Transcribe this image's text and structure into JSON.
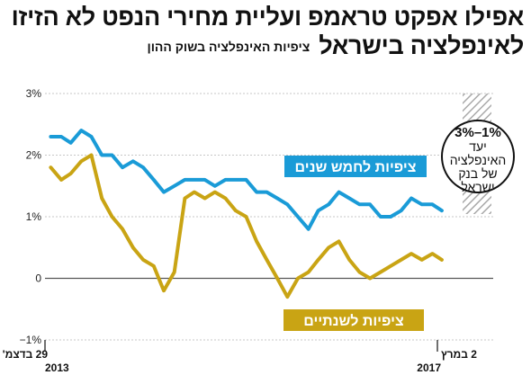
{
  "header": {
    "title_line1": "אפילו אפקט טראמפ ועליית מחירי הנפט לא הזיזו",
    "title_line2": "לאינפלציה בישראל",
    "subtitle": "ציפיות האינפלציה בשוק ההון"
  },
  "chart_data": {
    "type": "line",
    "title": "אפילו אפקט טראמפ ועליית מחירי הנפט לא הזיזו לאינפלציה בישראל",
    "subtitle": "ציפיות האינפלציה בשוק ההון",
    "ylim": [
      -1,
      3
    ],
    "yticks": [
      "3%",
      "2%",
      "1%",
      "0",
      "−1%"
    ],
    "yticks_values": [
      3,
      2,
      1,
      0,
      -1
    ],
    "grid": true,
    "x_range": [
      "2013-12-29",
      "2017-03-02"
    ],
    "x_start_label": {
      "day_month": "29 בדצמ'",
      "year": "2013"
    },
    "x_end_label": {
      "day_month": "2 במרץ",
      "year": "2017"
    },
    "series": [
      {
        "name": "ציפיות לחמש שנים",
        "color": "#1a9bd7",
        "x": [
          "2014-01",
          "2014-02",
          "2014-03",
          "2014-04",
          "2014-05",
          "2014-06",
          "2014-07",
          "2014-08",
          "2014-09",
          "2014-10",
          "2014-11",
          "2014-12",
          "2015-01",
          "2015-02",
          "2015-03",
          "2015-04",
          "2015-05",
          "2015-06",
          "2015-07",
          "2015-08",
          "2015-09",
          "2015-10",
          "2015-11",
          "2015-12",
          "2016-01",
          "2016-02",
          "2016-03",
          "2016-04",
          "2016-05",
          "2016-06",
          "2016-07",
          "2016-08",
          "2016-09",
          "2016-10",
          "2016-11",
          "2016-12",
          "2017-01",
          "2017-02",
          "2017-03"
        ],
        "values": [
          2.3,
          2.3,
          2.2,
          2.4,
          2.3,
          2.0,
          2.0,
          1.8,
          1.9,
          1.8,
          1.6,
          1.4,
          1.5,
          1.6,
          1.6,
          1.6,
          1.5,
          1.6,
          1.6,
          1.6,
          1.4,
          1.4,
          1.3,
          1.2,
          1.0,
          0.8,
          1.1,
          1.2,
          1.4,
          1.3,
          1.2,
          1.2,
          1.0,
          1.0,
          1.1,
          1.3,
          1.2,
          1.2,
          1.1
        ]
      },
      {
        "name": "ציפיות לשנתיים",
        "color": "#c9a414",
        "x": [
          "2014-01",
          "2014-02",
          "2014-03",
          "2014-04",
          "2014-05",
          "2014-06",
          "2014-07",
          "2014-08",
          "2014-09",
          "2014-10",
          "2014-11",
          "2014-12",
          "2015-01",
          "2015-02",
          "2015-03",
          "2015-04",
          "2015-05",
          "2015-06",
          "2015-07",
          "2015-08",
          "2015-09",
          "2015-10",
          "2015-11",
          "2015-12",
          "2016-01",
          "2016-02",
          "2016-03",
          "2016-04",
          "2016-05",
          "2016-06",
          "2016-07",
          "2016-08",
          "2016-09",
          "2016-10",
          "2016-11",
          "2016-12",
          "2017-01",
          "2017-02",
          "2017-03"
        ],
        "values": [
          1.8,
          1.6,
          1.7,
          1.9,
          2.0,
          1.3,
          1.0,
          0.8,
          0.5,
          0.3,
          0.2,
          -0.2,
          0.1,
          1.3,
          1.4,
          1.3,
          1.4,
          1.3,
          1.1,
          1.0,
          0.6,
          0.3,
          0.0,
          -0.3,
          0.0,
          0.1,
          0.3,
          0.5,
          0.6,
          0.3,
          0.1,
          0.0,
          0.1,
          0.2,
          0.3,
          0.4,
          0.3,
          0.4,
          0.3
        ]
      }
    ],
    "target_band": {
      "range": [
        1,
        3
      ],
      "label_range": "3%–1%",
      "label_lines": [
        "יעד",
        "האינפלציה",
        "של בנק",
        "ישראל"
      ]
    }
  }
}
